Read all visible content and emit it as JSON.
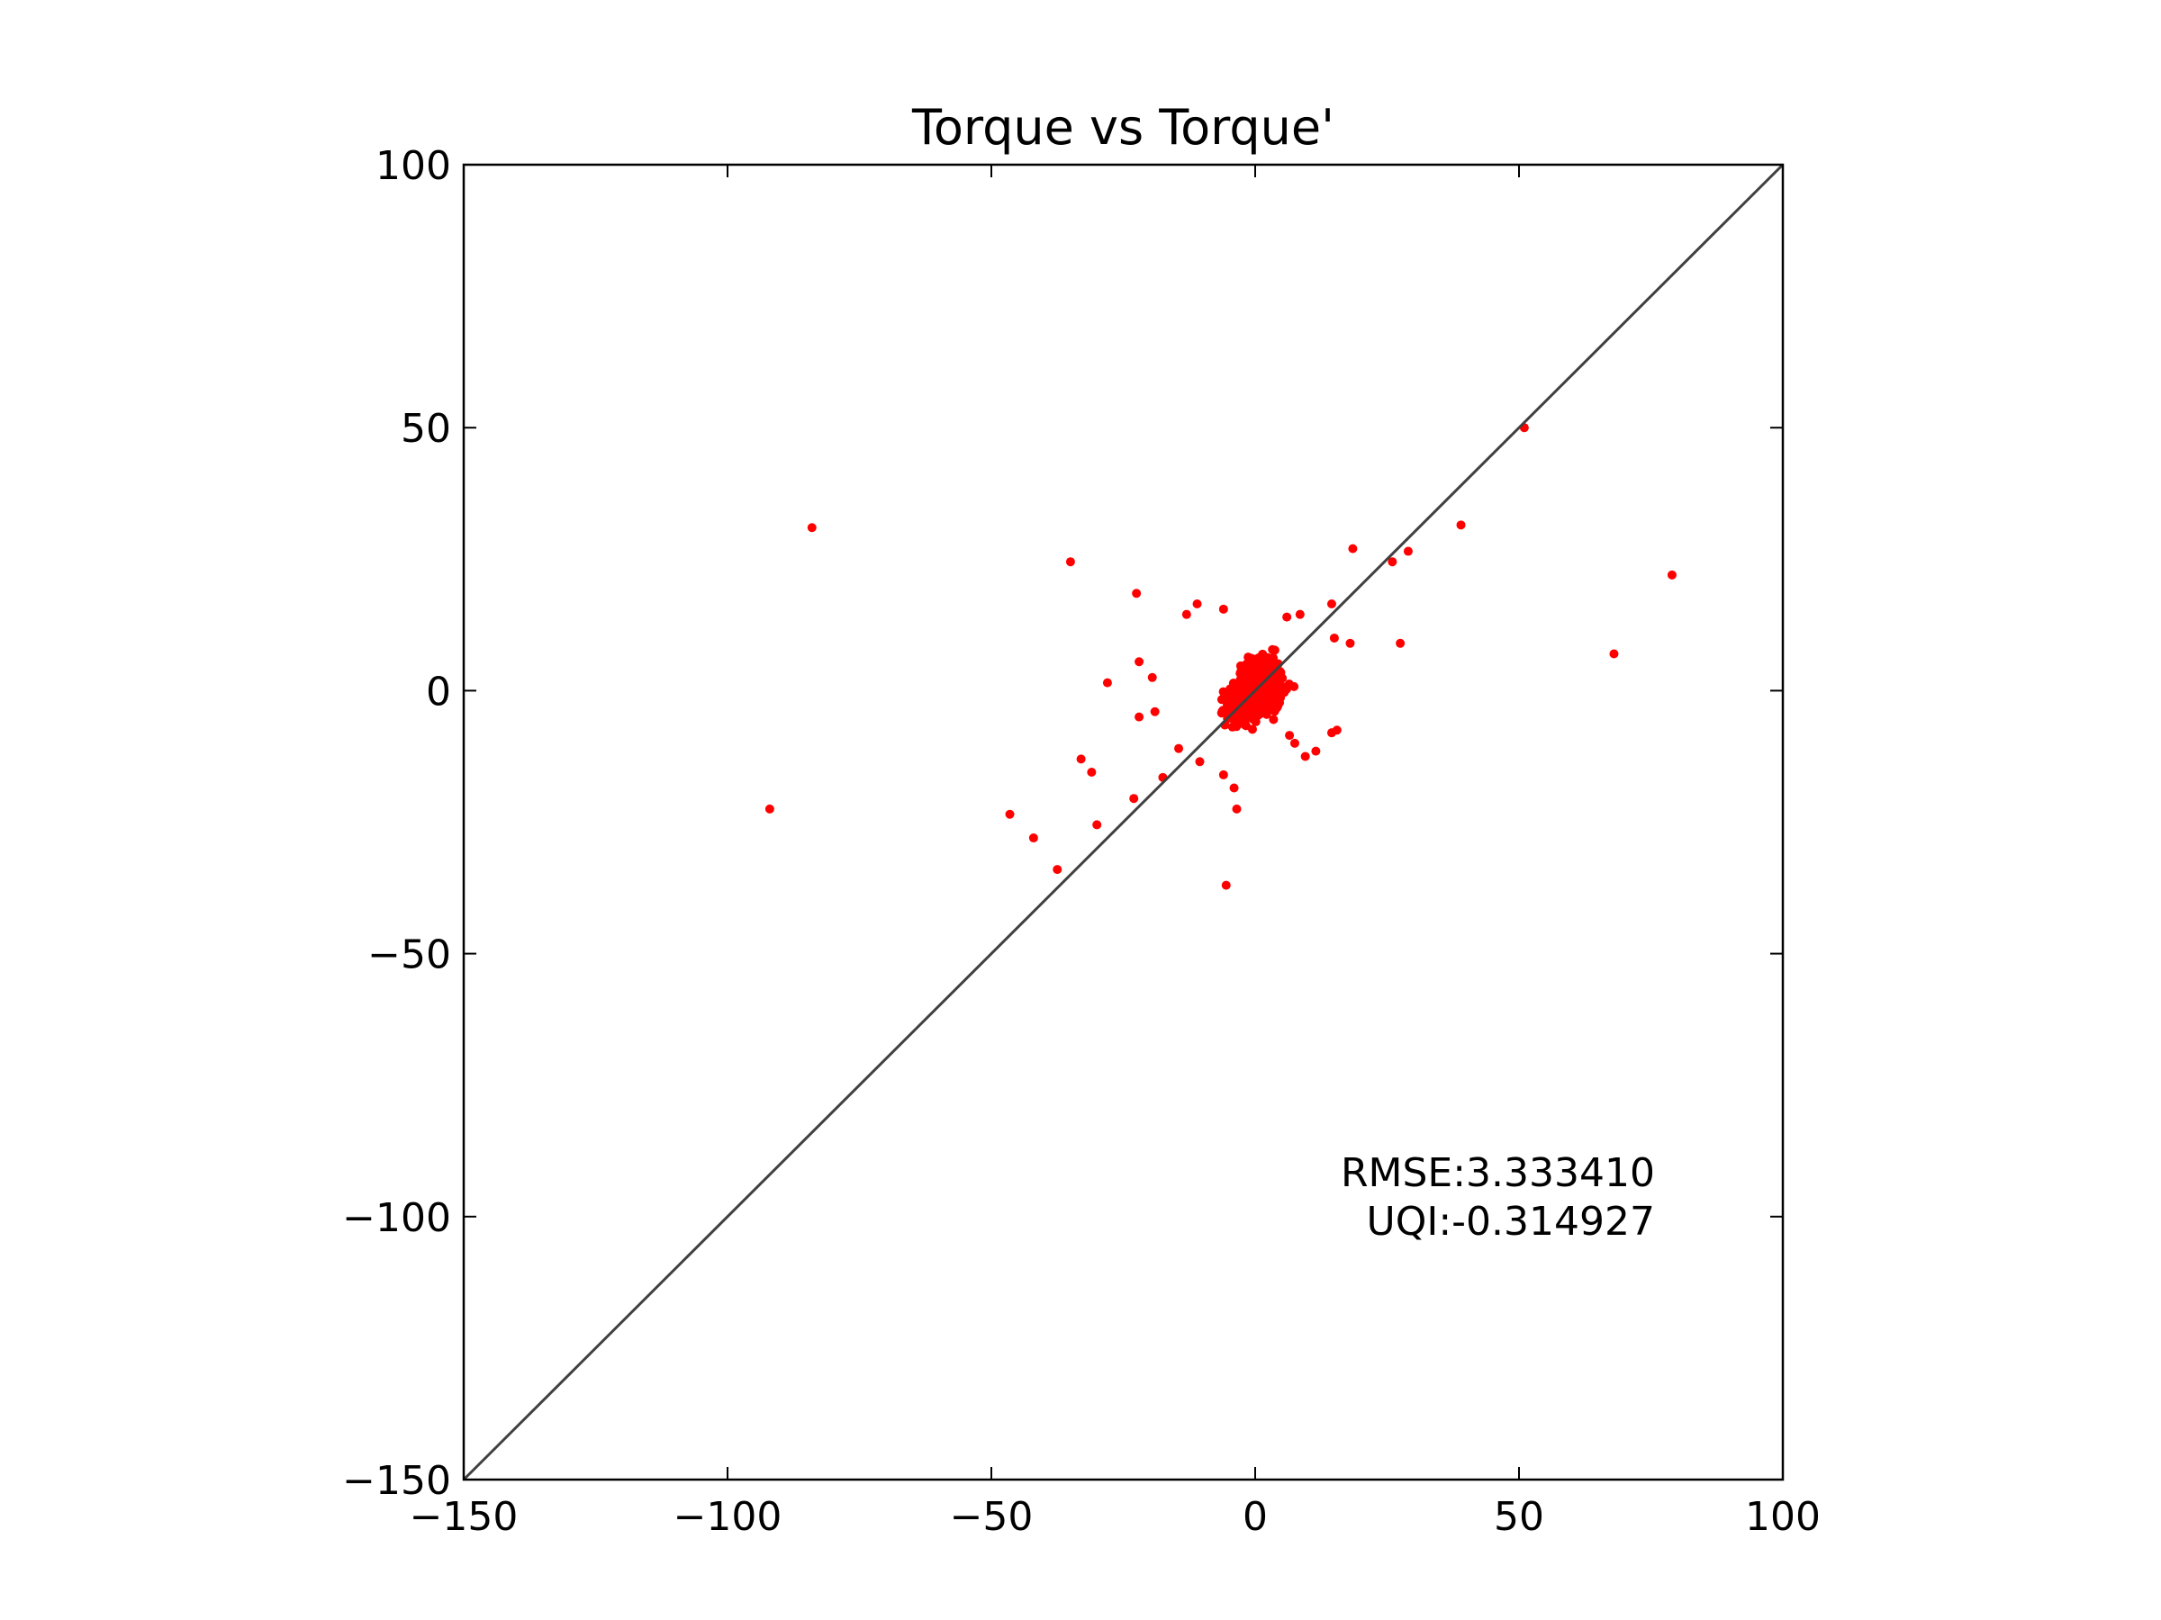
{
  "chart_data": {
    "type": "scatter",
    "title": "Torque vs Torque'",
    "xlabel": "",
    "ylabel": "",
    "xlim": [
      -150,
      100
    ],
    "ylim": [
      -150,
      100
    ],
    "x_ticks": [
      -150,
      -100,
      -50,
      0,
      50,
      100
    ],
    "y_ticks": [
      -150,
      -100,
      -50,
      0,
      50,
      100
    ],
    "x_tick_labels": [
      "−150",
      "−100",
      "−50",
      "0",
      "50",
      "100"
    ],
    "y_tick_labels": [
      "−150",
      "−100",
      "−50",
      "0",
      "50",
      "100"
    ],
    "grid": false,
    "reference_line": {
      "from": [
        -150,
        -150
      ],
      "to": [
        100,
        100
      ],
      "color": "#404040"
    },
    "point_color": "#ff0000",
    "annotations": [
      "RMSE:3.333410",
      "UQI:-0.314927"
    ],
    "outliers": [
      {
        "x": -84,
        "y": 31
      },
      {
        "x": -92,
        "y": -22.5
      },
      {
        "x": -35,
        "y": 24.5
      },
      {
        "x": -46.5,
        "y": -23.5
      },
      {
        "x": -42,
        "y": -28
      },
      {
        "x": -37.5,
        "y": -34
      },
      {
        "x": -33,
        "y": -13
      },
      {
        "x": -31,
        "y": -15.5
      },
      {
        "x": -30,
        "y": -25.5
      },
      {
        "x": -28,
        "y": 1.5
      },
      {
        "x": -23,
        "y": -20.5
      },
      {
        "x": -22.5,
        "y": 18.5
      },
      {
        "x": -22,
        "y": 5.5
      },
      {
        "x": -22,
        "y": -5
      },
      {
        "x": -19.5,
        "y": 2.5
      },
      {
        "x": -19,
        "y": -4
      },
      {
        "x": -17.5,
        "y": -16.5
      },
      {
        "x": -14.5,
        "y": -11
      },
      {
        "x": -11,
        "y": 16.5
      },
      {
        "x": -13,
        "y": 14.5
      },
      {
        "x": -10.5,
        "y": -13.5
      },
      {
        "x": -6,
        "y": -16
      },
      {
        "x": -5.5,
        "y": -37
      },
      {
        "x": -4,
        "y": -18.5
      },
      {
        "x": -3.5,
        "y": -22.5
      },
      {
        "x": 6,
        "y": 14
      },
      {
        "x": 8.5,
        "y": 14.5
      },
      {
        "x": 14.5,
        "y": 16.5
      },
      {
        "x": 15,
        "y": 10
      },
      {
        "x": 18.5,
        "y": 27
      },
      {
        "x": 18,
        "y": 9
      },
      {
        "x": 26,
        "y": 24.5
      },
      {
        "x": 29,
        "y": 26.5
      },
      {
        "x": 27.5,
        "y": 9
      },
      {
        "x": 39,
        "y": 31.5
      },
      {
        "x": 51,
        "y": 50
      },
      {
        "x": 68,
        "y": 7
      },
      {
        "x": 79,
        "y": 22
      },
      {
        "x": 14.5,
        "y": -8
      },
      {
        "x": 15.5,
        "y": -7.5
      },
      {
        "x": 9.5,
        "y": -12.5
      },
      {
        "x": 11.5,
        "y": -11.5
      },
      {
        "x": 6.5,
        "y": -8.5
      },
      {
        "x": 7.5,
        "y": -10
      },
      {
        "x": -6,
        "y": 15.5
      }
    ],
    "cluster": {
      "center": [
        0,
        0
      ],
      "spread": 5.5,
      "count": 900
    }
  }
}
